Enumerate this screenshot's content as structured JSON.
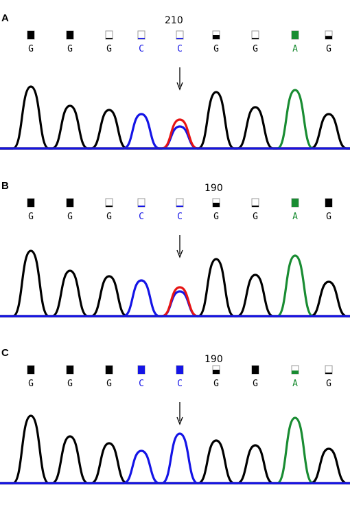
{
  "chart_data": [
    {
      "type": "line",
      "panel_label": "A",
      "position_label": "210",
      "bases": [
        "G",
        "G",
        "G",
        "C",
        "C",
        "G",
        "G",
        "A",
        "G"
      ],
      "quality_fill": [
        1,
        1,
        0.15,
        0.15,
        0.15,
        0.5,
        0.15,
        1,
        0.4
      ],
      "series": [
        {
          "base": "G",
          "color": "#000000",
          "values": [
            0.9,
            0.62,
            0.56,
            0,
            0,
            0.82,
            0.6,
            0,
            0.5
          ]
        },
        {
          "base": "C",
          "color": "#1414e6",
          "values": [
            0,
            0,
            0,
            0.5,
            0.32,
            0,
            0,
            0,
            0
          ]
        },
        {
          "base": "T",
          "color": "#e61414",
          "values": [
            0,
            0,
            0,
            0,
            0.42,
            0,
            0,
            0,
            0
          ]
        },
        {
          "base": "A",
          "color": "#198c32",
          "values": [
            0,
            0,
            0,
            0,
            0,
            0,
            0,
            0.85,
            0
          ]
        }
      ],
      "arrow_at_base": 4
    },
    {
      "type": "line",
      "panel_label": "B",
      "position_label": "190",
      "bases": [
        "G",
        "G",
        "G",
        "C",
        "C",
        "G",
        "G",
        "A",
        "G"
      ],
      "quality_fill": [
        1,
        1,
        0.15,
        0.15,
        0.15,
        0.5,
        0.15,
        1,
        1
      ],
      "series": [
        {
          "base": "G",
          "color": "#000000",
          "values": [
            0.95,
            0.66,
            0.58,
            0,
            0,
            0.83,
            0.6,
            0,
            0.5
          ]
        },
        {
          "base": "C",
          "color": "#1414e6",
          "values": [
            0,
            0,
            0,
            0.52,
            0.36,
            0,
            0,
            0,
            0
          ]
        },
        {
          "base": "T",
          "color": "#e61414",
          "values": [
            0,
            0,
            0,
            0,
            0.42,
            0,
            0,
            0,
            0
          ]
        },
        {
          "base": "A",
          "color": "#198c32",
          "values": [
            0,
            0,
            0,
            0,
            0,
            0,
            0,
            0.88,
            0
          ]
        }
      ],
      "arrow_at_base": 4
    },
    {
      "type": "line",
      "panel_label": "C",
      "position_label": "190",
      "bases": [
        "G",
        "G",
        "G",
        "C",
        "C",
        "G",
        "G",
        "A",
        "G"
      ],
      "quality_fill": [
        1,
        1,
        1,
        1,
        1,
        0.5,
        1,
        0.4,
        0.15
      ],
      "series": [
        {
          "base": "G",
          "color": "#000000",
          "values": [
            0.98,
            0.68,
            0.58,
            0,
            0,
            0.62,
            0.55,
            0,
            0.5
          ]
        },
        {
          "base": "C",
          "color": "#1414e6",
          "values": [
            0,
            0,
            0,
            0.47,
            0.72,
            0,
            0,
            0,
            0
          ]
        },
        {
          "base": "T",
          "color": "#e61414",
          "values": [
            0,
            0,
            0,
            0,
            0,
            0,
            0,
            0,
            0
          ]
        },
        {
          "base": "A",
          "color": "#198c32",
          "values": [
            0,
            0,
            0,
            0,
            0,
            0,
            0,
            0.95,
            0
          ]
        }
      ],
      "arrow_at_base": 4
    }
  ]
}
